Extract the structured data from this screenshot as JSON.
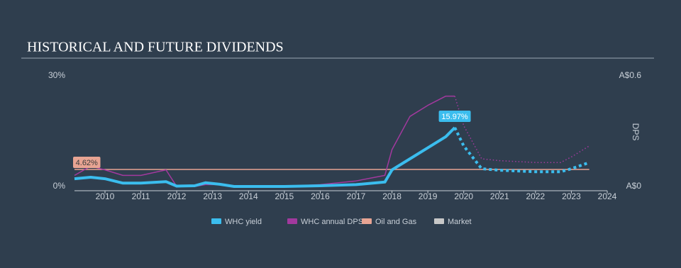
{
  "chart_data": {
    "type": "line",
    "title": "HISTORICAL AND FUTURE DIVIDENDS",
    "y2_label": "DPS",
    "x": [
      2009.15,
      2009.6,
      2010,
      2010.5,
      2011,
      2011.7,
      2012,
      2012.5,
      2012.8,
      2013.2,
      2013.6,
      2014,
      2015,
      2016,
      2017,
      2017.8,
      2018,
      2018.5,
      2019,
      2019.5,
      2019.75,
      2020,
      2020.5,
      2021,
      2022,
      2022.7,
      2023,
      2023.5
    ],
    "xlim": [
      2009.15,
      2024
    ],
    "xticks": [
      2010,
      2011,
      2012,
      2013,
      2014,
      2015,
      2016,
      2017,
      2018,
      2019,
      2020,
      2021,
      2022,
      2023,
      2024
    ],
    "ylim": [
      0,
      30
    ],
    "yticks": [
      {
        "value": 0,
        "label": "0%"
      },
      {
        "value": 30,
        "label": "30%"
      }
    ],
    "y2lim": [
      0,
      0.6
    ],
    "y2ticks": [
      {
        "value": 0,
        "label": "A$0"
      },
      {
        "value": 0.6,
        "label": "A$0.6"
      }
    ],
    "series": [
      {
        "name": "WHC yield",
        "color": "#3bbdee",
        "values": [
          2.1,
          2.5,
          2.1,
          0.9,
          0.9,
          1.3,
          0.1,
          0.2,
          1.0,
          0.6,
          0,
          0,
          0,
          0.2,
          0.5,
          1.2,
          4.5,
          7.5,
          10.5,
          13.5,
          15.97,
          null,
          null,
          null,
          null,
          null,
          null,
          null
        ],
        "forecast": [
          null,
          null,
          null,
          null,
          null,
          null,
          null,
          null,
          null,
          null,
          null,
          null,
          null,
          null,
          null,
          null,
          null,
          null,
          null,
          null,
          15.97,
          11,
          4.8,
          4.4,
          4.0,
          4.0,
          4.8,
          6.5
        ],
        "value_labels": [
          null,
          null,
          null,
          null,
          null,
          null,
          null,
          null,
          null,
          null,
          null,
          null,
          null,
          null,
          null,
          null,
          null,
          null,
          null,
          null,
          "15.97%",
          null,
          null,
          null,
          null,
          null,
          null,
          null
        ]
      },
      {
        "name": "WHC annual DPS",
        "color": "#a2399e",
        "axis": "y2",
        "values": [
          0.06,
          0.11,
          0.09,
          0.06,
          0.06,
          0.09,
          0.0,
          0.0,
          0.01,
          0.01,
          0,
          0,
          0,
          0.01,
          0.03,
          0.06,
          0.2,
          0.38,
          0.44,
          0.49,
          0.49,
          null,
          null,
          null,
          null,
          null,
          null,
          null
        ],
        "forecast": [
          null,
          null,
          null,
          null,
          null,
          null,
          null,
          null,
          null,
          null,
          null,
          null,
          null,
          null,
          null,
          null,
          null,
          null,
          null,
          null,
          0.49,
          0.33,
          0.15,
          0.14,
          0.13,
          0.13,
          0.16,
          0.22
        ]
      },
      {
        "name": "Oil and Gas",
        "color": "#e8a493",
        "x": [
          2009.15,
          2023.5
        ],
        "values": [
          4.62,
          4.62
        ],
        "value_labels": [
          "4.62%",
          null
        ]
      },
      {
        "name": "Market",
        "color": "#c8c8c8"
      }
    ]
  }
}
